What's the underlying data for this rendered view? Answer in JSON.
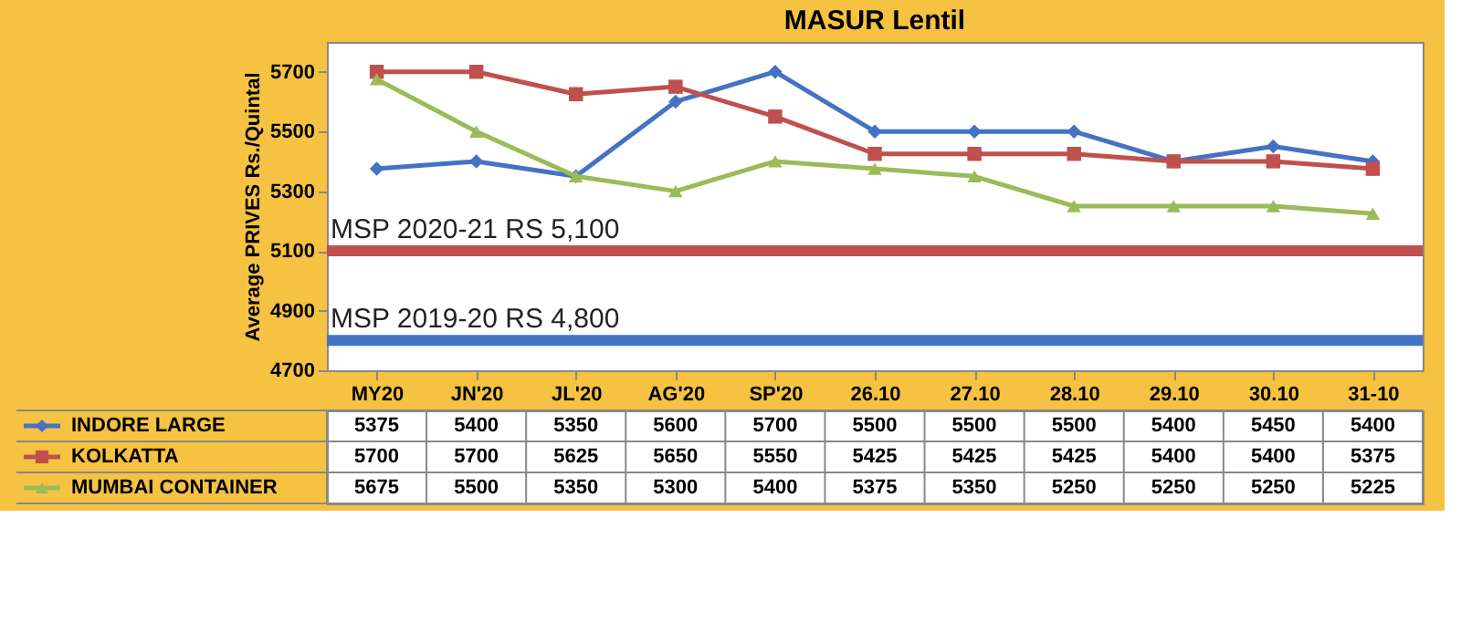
{
  "chart_data": {
    "type": "line",
    "title": "MASUR Lentil",
    "ylabel": "Average PRIVES Rs./Quintal",
    "categories": [
      "MY20",
      "JN'20",
      "JL'20",
      "AG'20",
      "SP'20",
      "26.10",
      "27.10",
      "28.10",
      "29.10",
      "30.10",
      "31-10"
    ],
    "series": [
      {
        "name": "INDORE LARGE",
        "color": "#4472c4",
        "marker": "diamond",
        "values": [
          5375,
          5400,
          5350,
          5600,
          5700,
          5500,
          5500,
          5500,
          5400,
          5450,
          5400
        ]
      },
      {
        "name": "KOLKATTA",
        "color": "#c0504d",
        "marker": "square",
        "values": [
          5700,
          5700,
          5625,
          5650,
          5550,
          5425,
          5425,
          5425,
          5400,
          5400,
          5375
        ]
      },
      {
        "name": "MUMBAI CONTAINER",
        "color": "#9bbb59",
        "marker": "triangle",
        "values": [
          5675,
          5500,
          5350,
          5300,
          5400,
          5375,
          5350,
          5250,
          5250,
          5250,
          5225
        ]
      }
    ],
    "ylim": [
      4700,
      5800
    ],
    "yticks": [
      4700,
      4900,
      5100,
      5300,
      5500,
      5700
    ],
    "ref_lines": [
      {
        "axis": "y",
        "value": 5100,
        "label": "MSP 2020-21 RS 5,100",
        "color": "#c0504d"
      },
      {
        "axis": "y",
        "value": 4800,
        "label": "MSP 2019-20 RS 4,800",
        "color": "#4472c4"
      }
    ],
    "data_labels": true,
    "legend": "bottom",
    "grid": false
  }
}
